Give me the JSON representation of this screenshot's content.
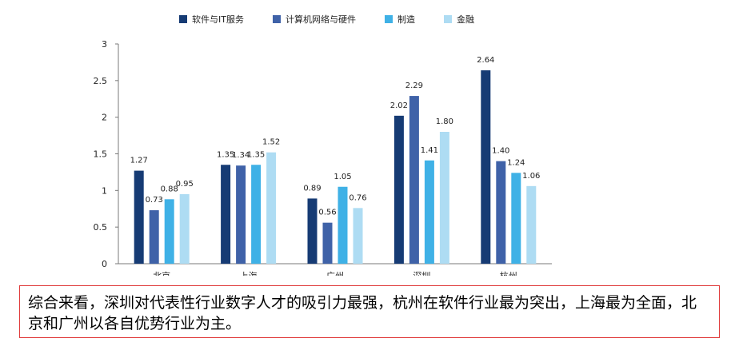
{
  "chart_data": {
    "type": "bar",
    "categories": [
      "北京",
      "上海",
      "广州",
      "深圳",
      "杭州"
    ],
    "series": [
      {
        "name": "软件与IT服务",
        "color": "#163b74",
        "values": [
          1.27,
          1.35,
          0.89,
          2.02,
          2.64
        ],
        "labels": [
          "1.27",
          "1.35",
          "0.89",
          "2.02",
          "2.64"
        ]
      },
      {
        "name": "计算机网络与硬件",
        "color": "#3f62a8",
        "values": [
          0.73,
          1.34,
          0.56,
          2.29,
          1.4
        ],
        "labels": [
          "0.73",
          "1.34",
          "0.56",
          "2.29",
          "1.40"
        ]
      },
      {
        "name": "制造",
        "color": "#3fb1e6",
        "values": [
          0.88,
          1.35,
          1.05,
          1.41,
          1.24
        ],
        "labels": [
          "0.88",
          "1.35",
          "1.05",
          "1.41",
          "1.24"
        ]
      },
      {
        "name": "金融",
        "color": "#aedcf3",
        "values": [
          0.95,
          1.52,
          0.76,
          1.8,
          1.06
        ],
        "labels": [
          "0.95",
          "1.52",
          "0.76",
          "1.80",
          "1.06"
        ]
      }
    ],
    "yticks": [
      "0",
      "0.5",
      "1",
      "1.5",
      "2",
      "2.5",
      "3"
    ],
    "ylim": [
      0,
      3
    ],
    "grid": false,
    "legend": "top-center",
    "title": "",
    "xlabel": "",
    "ylabel": ""
  },
  "summary": {
    "text": "综合来看，深圳对代表性行业数字人才的吸引力最强，杭州在软件行业最为突出，上海最为全面，北京和广州以各自优势行业为主。"
  }
}
